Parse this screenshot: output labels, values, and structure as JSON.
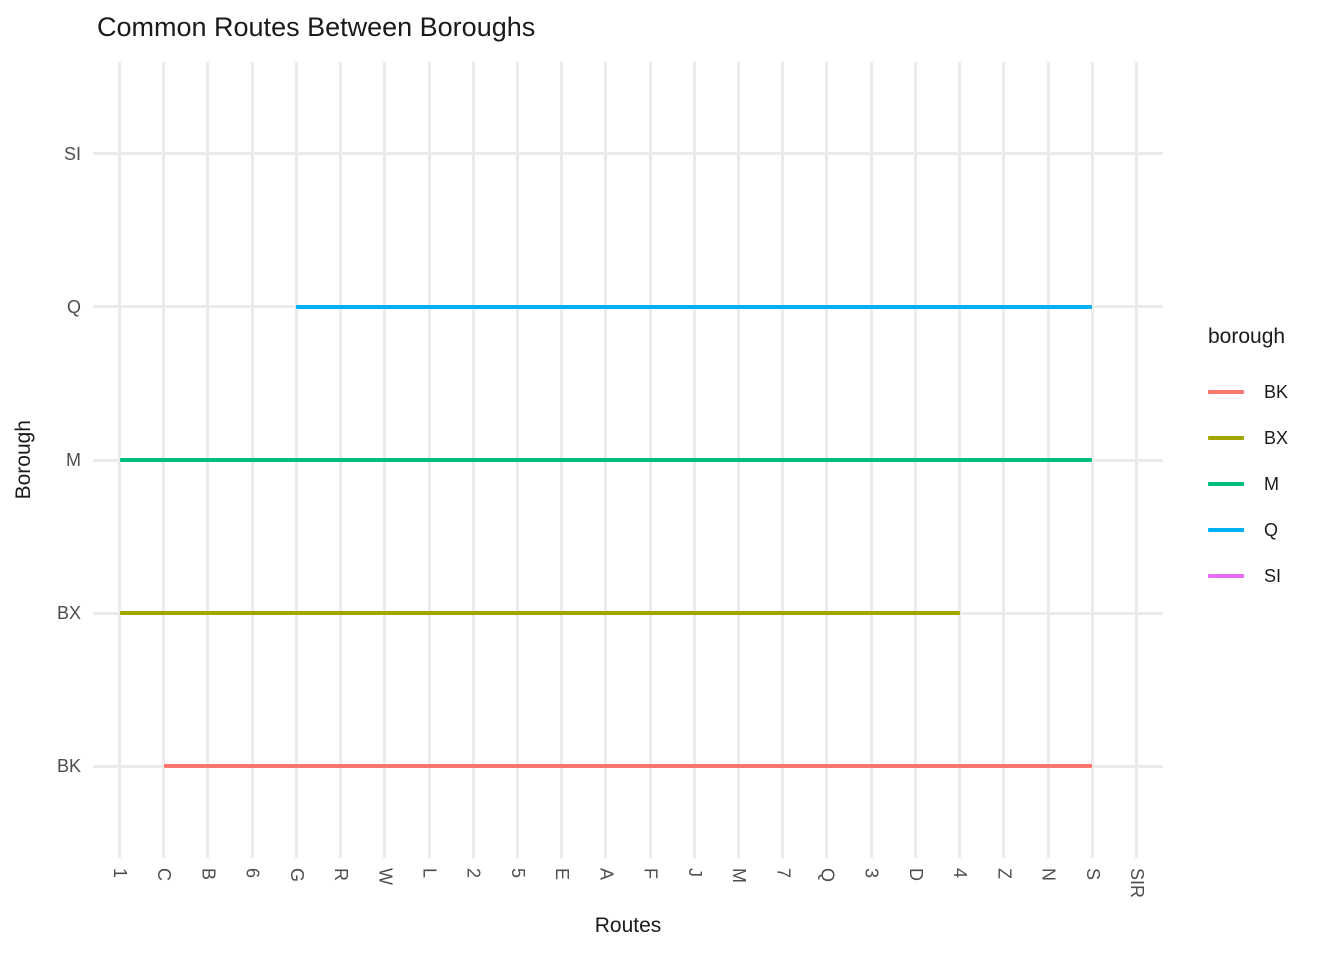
{
  "title": "Common Routes Between Boroughs",
  "chart_data": {
    "type": "line",
    "description": "Horizontal route-range segments per borough across subway routes",
    "x_categories": [
      "1",
      "C",
      "B",
      "6",
      "G",
      "R",
      "W",
      "L",
      "2",
      "5",
      "E",
      "A",
      "F",
      "J",
      "M",
      "7",
      "Q",
      "3",
      "D",
      "4",
      "Z",
      "N",
      "S",
      "SIR"
    ],
    "y_categories_bottom_to_top": [
      "BK",
      "BX",
      "M",
      "Q",
      "SI"
    ],
    "series": [
      {
        "name": "BK",
        "color": "#F8766D",
        "from": "C",
        "to": "S"
      },
      {
        "name": "BX",
        "color": "#A3A500",
        "from": "1",
        "to": "4"
      },
      {
        "name": "M",
        "color": "#00BF7D",
        "from": "1",
        "to": "S"
      },
      {
        "name": "Q",
        "color": "#00B0F6",
        "from": "G",
        "to": "S"
      },
      {
        "name": "SI",
        "color": "#E76BF3",
        "from": "SIR",
        "to": "SIR"
      }
    ],
    "xlabel": "Routes",
    "ylabel": "Borough",
    "grid": true,
    "legend": {
      "title": "borough",
      "position": "right"
    }
  },
  "colors": {
    "grid": "#EBEBEB",
    "tick_text": "#4D4D4D",
    "title_text": "#1A1A1A",
    "panel_bg": "#FFFFFF"
  }
}
